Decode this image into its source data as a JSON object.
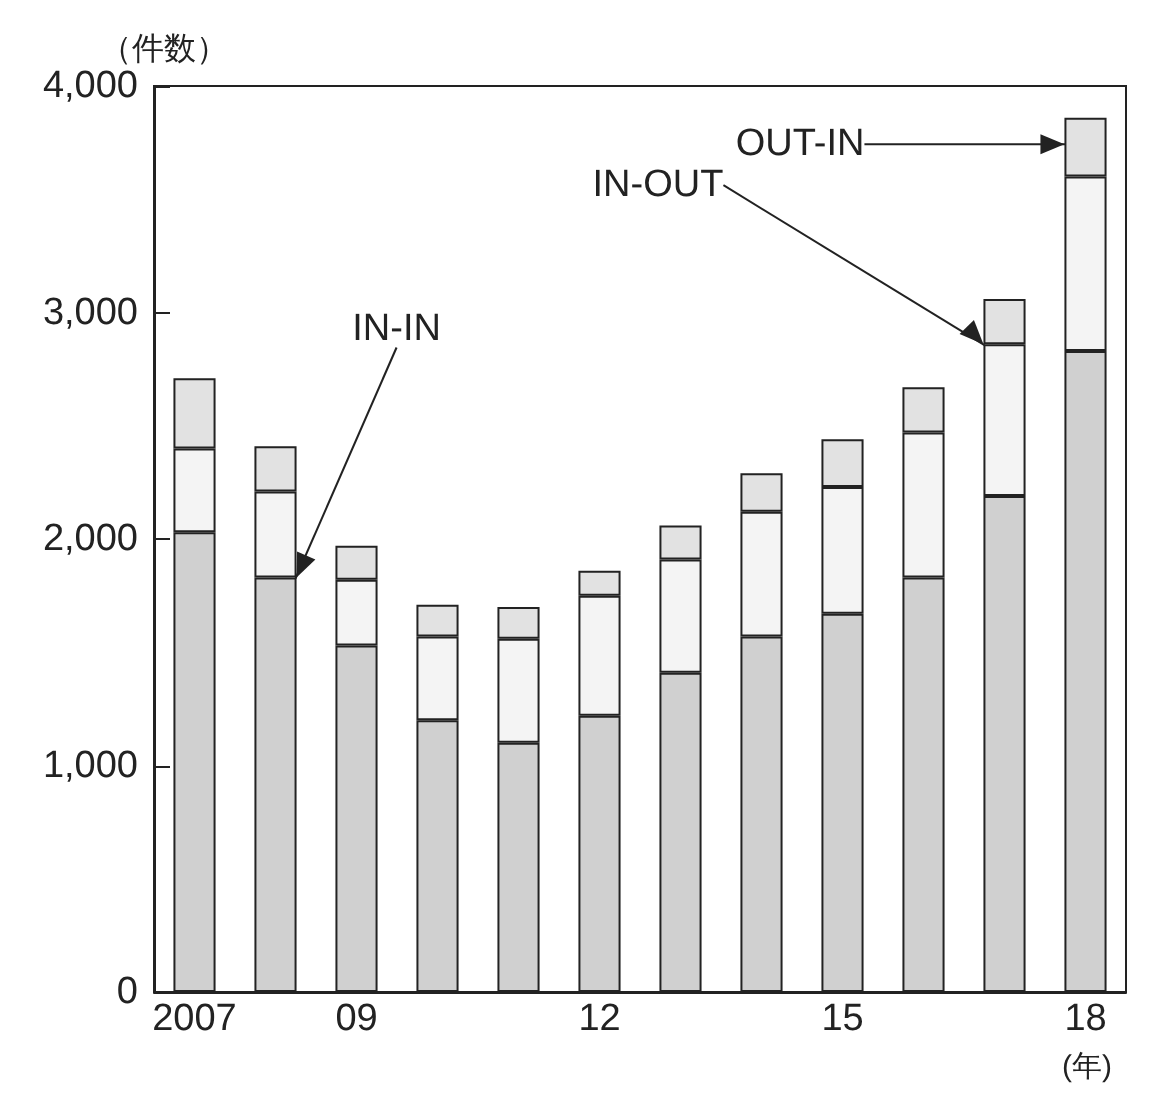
{
  "chart_data": {
    "type": "bar",
    "stacked": true,
    "ylabel": "（件数）",
    "xlabel": "(年)",
    "categories": [
      "2007",
      null,
      "09",
      null,
      null,
      "12",
      null,
      null,
      "15",
      null,
      null,
      "18"
    ],
    "series": [
      {
        "name": "IN-IN",
        "color": "#d0d0d0",
        "values": [
          2030,
          1830,
          1530,
          1200,
          1100,
          1220,
          1410,
          1570,
          1670,
          1830,
          2190,
          2830
        ]
      },
      {
        "name": "IN-OUT",
        "color": "#f4f4f4",
        "values": [
          370,
          380,
          290,
          370,
          460,
          530,
          500,
          550,
          560,
          640,
          670,
          770
        ]
      },
      {
        "name": "OUT-IN",
        "color": "#e2e2e2",
        "values": [
          310,
          200,
          150,
          140,
          140,
          110,
          150,
          170,
          210,
          200,
          200,
          260
        ]
      }
    ],
    "ylim": [
      0,
      4000
    ],
    "yticks": [
      0,
      {
        "value": 1000,
        "label": "1,000"
      },
      {
        "value": 2000,
        "label": "2,000"
      },
      {
        "value": 3000,
        "label": "3,000"
      },
      {
        "value": 4000,
        "label": "4,000"
      }
    ],
    "grid": false,
    "legend": false
  }
}
